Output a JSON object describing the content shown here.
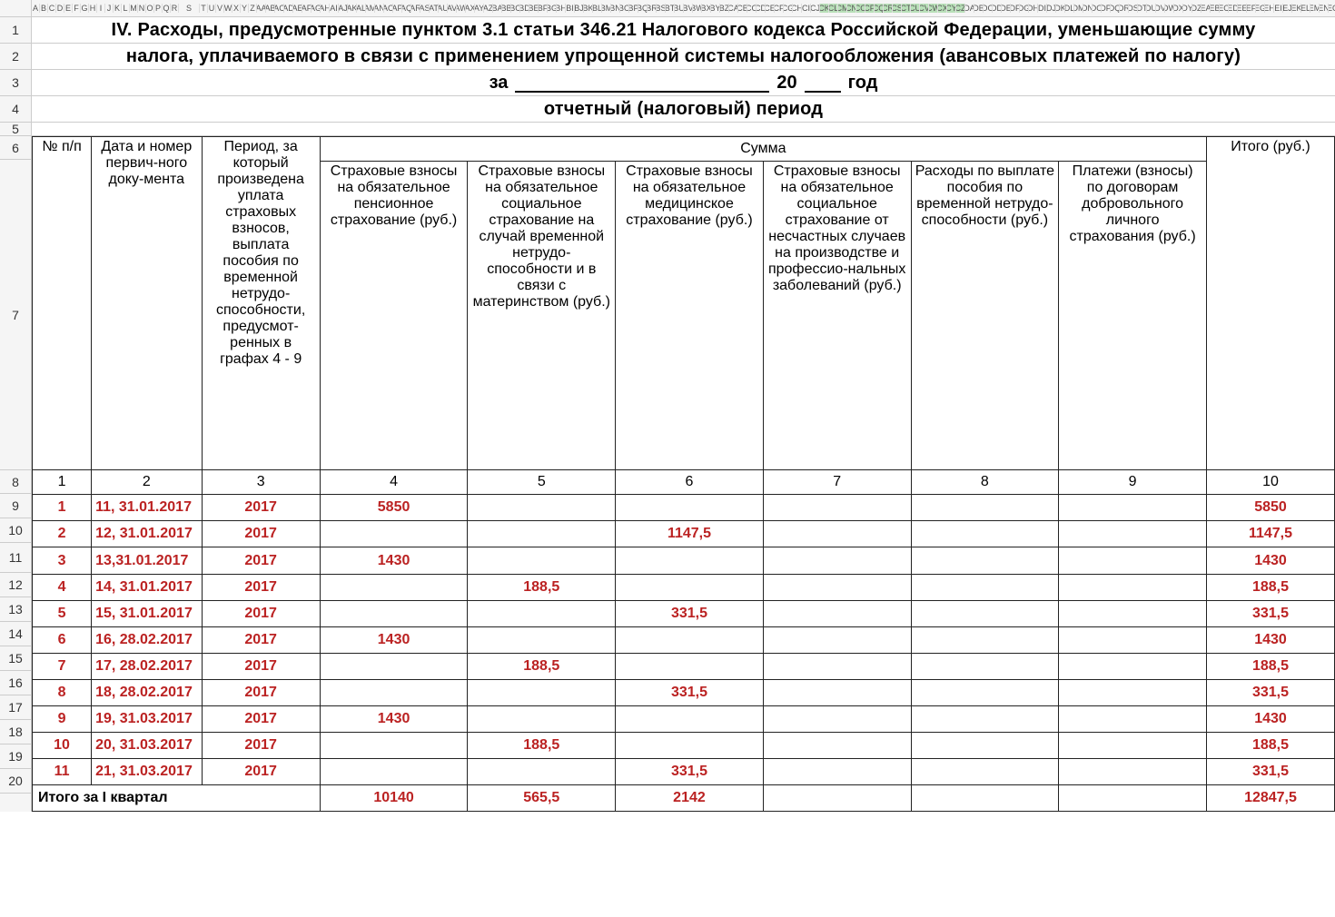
{
  "title_line1": "IV. Расходы, предусмотренные пунктом 3.1 статьи 346.21 Налогового кодекса Российской Федерации, уменьшающие сумму",
  "title_line2": "налога, уплачиваемого в связи с применением упрощенной системы налогообложения (авансовых платежей по налогу)",
  "period_label_1": "за",
  "period_label_2": "20",
  "period_label_3": "год",
  "period_subtitle": "отчетный (налоговый) период",
  "col_letters": [
    "A",
    "B",
    "C",
    "D",
    "E",
    "F",
    "G",
    "H",
    "I",
    "J",
    "K",
    "L",
    "M",
    "N",
    "O",
    "P",
    "Q",
    "R",
    "S",
    "T",
    "U",
    "V",
    "W",
    "X",
    "Y",
    "Z",
    "AA",
    "AB",
    "AC",
    "AD",
    "AE",
    "AF",
    "AG",
    "AH",
    "AI",
    "AJ",
    "AK",
    "AL",
    "AM",
    "AN",
    "AO",
    "AP",
    "AQ",
    "AR",
    "AS",
    "AT",
    "AU",
    "AV",
    "AW",
    "AX",
    "AY",
    "AZ",
    "BA",
    "BB",
    "BC",
    "BD",
    "BE",
    "BF",
    "BG",
    "BH",
    "BI",
    "BJ",
    "BK",
    "BL",
    "BM",
    "BN",
    "BO",
    "BP",
    "BQ",
    "BR",
    "BS",
    "BT",
    "BU",
    "BV",
    "BW",
    "BX",
    "BY",
    "BZ",
    "CA",
    "CB",
    "CC",
    "CD",
    "CE",
    "CF",
    "CG",
    "CH",
    "CI",
    "CJ",
    "CK",
    "CL",
    "CM",
    "CN",
    "CO",
    "CP",
    "CQ",
    "CR",
    "CS",
    "CT",
    "CU",
    "CV",
    "CW",
    "CX",
    "CY",
    "CZ",
    "DA",
    "DB",
    "DC",
    "DD",
    "DE",
    "DF",
    "DG",
    "DH",
    "DI",
    "DJ",
    "DK",
    "DL",
    "DM",
    "DN",
    "DO",
    "DP",
    "DQ",
    "DR",
    "DS",
    "DT",
    "DU",
    "DV",
    "DW",
    "DX",
    "DY",
    "DZ",
    "EA",
    "EB",
    "EC",
    "ED",
    "EE",
    "EF",
    "EG",
    "EH",
    "EI",
    "EJ",
    "EK",
    "EL",
    "EM",
    "EN",
    "EO",
    "EP",
    "EQ",
    "ER",
    "ES",
    "ET",
    "EU",
    "EV",
    "EW",
    "EX",
    "EY",
    "EZ"
  ],
  "selected_cols_start": 88,
  "selected_cols_end": 103,
  "headers": {
    "c1": "№ п/п",
    "c2": "Дата и номер первич-ного доку-мента",
    "c3": "Период, за который произведена уплата страховых взносов, выплата пособия по временной нетрудо-способности, предусмот-ренных в графах 4 - 9",
    "sum": "Сумма",
    "c4": "Страховые взносы на обязательное пенсионное страхование (руб.)",
    "c5": "Страховые взносы на обязательное социальное страхование на случай временной нетрудо-способности и в связи с материнством (руб.)",
    "c6": "Страховые взносы на обязательное медицинское страхование (руб.)",
    "c7": "Страховые взносы на обязательное социальное страхование от несчастных случаев на производстве и профессио-нальных заболеваний (руб.)",
    "c8": "Расходы по выплате пособия по временной нетрудо-способности (руб.)",
    "c9": "Платежи (взносы) по договорам добровольного личного страхования (руб.)",
    "c10": "Итого (руб.)"
  },
  "colnums": [
    "1",
    "2",
    "3",
    "4",
    "5",
    "6",
    "7",
    "8",
    "9",
    "10"
  ],
  "rows": [
    {
      "n": "1",
      "doc": "11, 31.01.2017",
      "period": "2017",
      "c4": "5850",
      "c5": "",
      "c6": "",
      "c7": "",
      "c8": "",
      "c9": "",
      "c10": "5850"
    },
    {
      "n": "2",
      "doc": "12, 31.01.2017",
      "period": "2017",
      "c4": "",
      "c5": "",
      "c6": "1147,5",
      "c7": "",
      "c8": "",
      "c9": "",
      "c10": "1147,5"
    },
    {
      "n": "3",
      "doc": "13,31.01.2017",
      "period": "2017",
      "c4": "1430",
      "c5": "",
      "c6": "",
      "c7": "",
      "c8": "",
      "c9": "",
      "c10": "1430"
    },
    {
      "n": "4",
      "doc": "14, 31.01.2017",
      "period": "2017",
      "c4": "",
      "c5": "188,5",
      "c6": "",
      "c7": "",
      "c8": "",
      "c9": "",
      "c10": "188,5"
    },
    {
      "n": "5",
      "doc": "15, 31.01.2017",
      "period": "2017",
      "c4": "",
      "c5": "",
      "c6": "331,5",
      "c7": "",
      "c8": "",
      "c9": "",
      "c10": "331,5"
    },
    {
      "n": "6",
      "doc": "16, 28.02.2017",
      "period": "2017",
      "c4": "1430",
      "c5": "",
      "c6": "",
      "c7": "",
      "c8": "",
      "c9": "",
      "c10": "1430"
    },
    {
      "n": "7",
      "doc": "17, 28.02.2017",
      "period": "2017",
      "c4": "",
      "c5": "188,5",
      "c6": "",
      "c7": "",
      "c8": "",
      "c9": "",
      "c10": "188,5"
    },
    {
      "n": "8",
      "doc": "18, 28.02.2017",
      "period": "2017",
      "c4": "",
      "c5": "",
      "c6": "331,5",
      "c7": "",
      "c8": "",
      "c9": "",
      "c10": "331,5"
    },
    {
      "n": "9",
      "doc": "19, 31.03.2017",
      "period": "2017",
      "c4": "1430",
      "c5": "",
      "c6": "",
      "c7": "",
      "c8": "",
      "c9": "",
      "c10": "1430"
    },
    {
      "n": "10",
      "doc": "20, 31.03.2017",
      "period": "2017",
      "c4": "",
      "c5": "188,5",
      "c6": "",
      "c7": "",
      "c8": "",
      "c9": "",
      "c10": "188,5"
    },
    {
      "n": "11",
      "doc": "21, 31.03.2017",
      "period": "2017",
      "c4": "",
      "c5": "",
      "c6": "331,5",
      "c7": "",
      "c8": "",
      "c9": "",
      "c10": "331,5"
    }
  ],
  "total": {
    "label": "Итого за I квартал",
    "c4": "10140",
    "c5": "565,5",
    "c6": "2142",
    "c7": "",
    "c8": "",
    "c9": "",
    "c10": "12847,5"
  },
  "row_numbers_upper": [
    "1",
    "2",
    "3",
    "4",
    "5"
  ],
  "row_numbers_table": [
    "6",
    "7",
    "8",
    "9",
    "10",
    "11",
    "12",
    "13",
    "14",
    "15",
    "16",
    "17",
    "18",
    "19",
    "20"
  ],
  "colors": {
    "grid_border": "#cccccc",
    "header_bg": "#f5f5f5",
    "data_text": "#bb2222",
    "selected_col_bg": "#b8e0b8",
    "table_border": "#222222"
  },
  "col_widths": {
    "c1": 60,
    "c2": 112,
    "c3": 120,
    "c4": 150,
    "c5": 150,
    "c6": 150,
    "c7": 150,
    "c8": 150,
    "c9": 150,
    "c10": 130
  }
}
